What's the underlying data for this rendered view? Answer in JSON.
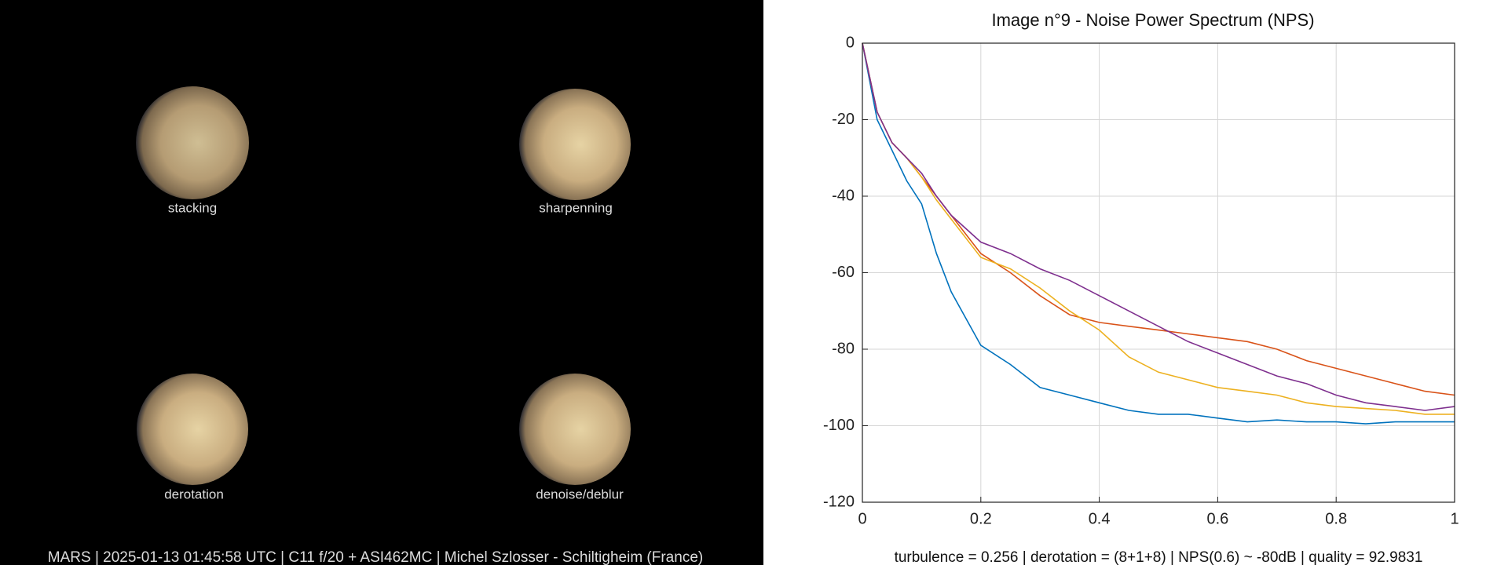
{
  "panel": {
    "labels": [
      "stacking",
      "sharpenning",
      "derotation",
      "denoise/deblur"
    ],
    "caption": "MARS | 2025-01-13  01:45:58 UTC | C11 f/20 + ASI462MC | Michel Szlosser - Schiltigheim (France)"
  },
  "chart_data": {
    "type": "line",
    "title": "Image n°9 - Noise Power Spectrum (NPS)",
    "annotation": "turbulence = 0.256 | derotation = (8+1+8) | NPS(0.6) ~ -80dB |  quality = 92.9831",
    "x": [
      0,
      0.025,
      0.05,
      0.075,
      0.1,
      0.125,
      0.15,
      0.2,
      0.25,
      0.3,
      0.35,
      0.4,
      0.45,
      0.5,
      0.55,
      0.6,
      0.65,
      0.7,
      0.75,
      0.8,
      0.85,
      0.9,
      0.95,
      1
    ],
    "series": [
      {
        "color": "#0072bd",
        "values": [
          0,
          -20,
          -28,
          -36,
          -42,
          -55,
          -65,
          -79,
          -84,
          -90,
          -92,
          -94,
          -96,
          -97,
          -97,
          -98,
          -99,
          -98.5,
          -99,
          -99,
          -99.5,
          -99,
          -99,
          -99
        ]
      },
      {
        "color": "#d95319",
        "values": [
          0,
          -18,
          -26,
          -30,
          -35,
          -40,
          -45,
          -55,
          -60,
          -66,
          -71,
          -73,
          -74,
          -75,
          -76,
          -77,
          -78,
          -80,
          -83,
          -85,
          -87,
          -89,
          -91,
          -92
        ]
      },
      {
        "color": "#edb120",
        "values": [
          0,
          -18,
          -26,
          -30,
          -35,
          -41,
          -46,
          -56,
          -59,
          -64,
          -70,
          -75,
          -82,
          -86,
          -88,
          -90,
          -91,
          -92,
          -94,
          -95,
          -95.5,
          -96,
          -97,
          -97
        ]
      },
      {
        "color": "#7e2f8e",
        "values": [
          0,
          -18,
          -26,
          -30,
          -34,
          -40,
          -45,
          -52,
          -55,
          -59,
          -62,
          -66,
          -70,
          -74,
          -78,
          -81,
          -84,
          -87,
          -89,
          -92,
          -94,
          -95,
          -96,
          -95
        ]
      }
    ],
    "xlim": [
      0,
      1
    ],
    "ylim": [
      -120,
      0
    ],
    "xticks": [
      0,
      0.2,
      0.4,
      0.6,
      0.8,
      1
    ],
    "yticks": [
      -120,
      -100,
      -80,
      -60,
      -40,
      -20,
      0
    ],
    "grid": true
  }
}
